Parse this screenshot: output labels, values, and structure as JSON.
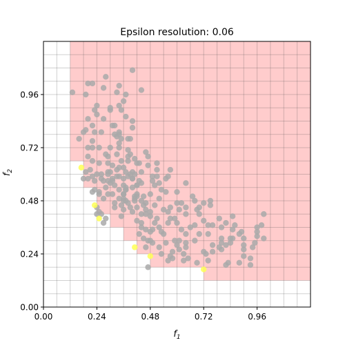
{
  "chart_data": {
    "type": "scatter",
    "title": "Epsilon resolution: 0.06",
    "xlabel": "f",
    "xlabel_sub": "1",
    "ylabel": "f",
    "ylabel_sub": "2",
    "xlim": [
      0.0,
      1.2
    ],
    "ylim": [
      0.0,
      1.2
    ],
    "xticks": [
      0.0,
      0.24,
      0.48,
      0.72,
      0.96
    ],
    "yticks": [
      0.0,
      0.24,
      0.48,
      0.72,
      0.96
    ],
    "xtick_labels": [
      "0.00",
      "0.24",
      "0.48",
      "0.72",
      "0.96"
    ],
    "ytick_labels": [
      "0.00",
      "0.24",
      "0.48",
      "0.72",
      "0.96"
    ],
    "epsilon": 0.06,
    "grid": true,
    "dominated_region": {
      "color": "#ff9999",
      "steps": [
        {
          "x": 0.12,
          "y": 0.66
        },
        {
          "x": 0.18,
          "y": 0.54
        },
        {
          "x": 0.24,
          "y": 0.42
        },
        {
          "x": 0.3,
          "y": 0.36
        },
        {
          "x": 0.36,
          "y": 0.3
        },
        {
          "x": 0.42,
          "y": 0.24
        },
        {
          "x": 0.48,
          "y": 0.18
        },
        {
          "x": 0.72,
          "y": 0.12
        }
      ]
    },
    "series": [
      {
        "color": "#a9a9a9",
        "points": [
          [
            0.61,
            0.44
          ],
          [
            0.34,
            0.59
          ],
          [
            0.44,
            0.42
          ],
          [
            0.93,
            0.22
          ],
          [
            0.36,
            0.44
          ],
          [
            0.48,
            0.41
          ],
          [
            0.56,
            0.38
          ],
          [
            0.24,
            0.42
          ],
          [
            0.55,
            0.58
          ],
          [
            0.3,
            0.61
          ],
          [
            0.82,
            0.19
          ],
          [
            0.38,
            0.68
          ],
          [
            0.72,
            0.39
          ],
          [
            0.9,
            0.26
          ],
          [
            0.63,
            0.24
          ],
          [
            0.73,
            0.24
          ],
          [
            0.75,
            0.46
          ],
          [
            0.47,
            0.18
          ],
          [
            0.22,
            0.52
          ],
          [
            0.32,
            0.78
          ],
          [
            0.57,
            0.45
          ],
          [
            0.76,
            0.25
          ],
          [
            0.64,
            0.33
          ],
          [
            0.36,
            0.51
          ],
          [
            0.3,
            0.72
          ],
          [
            0.88,
            0.33
          ],
          [
            0.27,
            0.57
          ],
          [
            0.99,
            0.31
          ],
          [
            0.4,
            0.58
          ],
          [
            0.32,
            0.45
          ],
          [
            0.44,
            0.56
          ],
          [
            0.51,
            0.59
          ],
          [
            0.34,
            0.63
          ],
          [
            0.45,
            0.31
          ],
          [
            0.18,
            0.58
          ],
          [
            0.59,
            0.3
          ],
          [
            0.27,
            0.99
          ],
          [
            0.44,
            0.98
          ],
          [
            0.52,
            0.36
          ],
          [
            0.55,
            0.52
          ],
          [
            0.67,
            0.5
          ],
          [
            0.48,
            0.34
          ],
          [
            0.57,
            0.4
          ],
          [
            0.62,
            0.35
          ],
          [
            0.31,
            0.82
          ],
          [
            0.37,
            0.53
          ],
          [
            0.74,
            0.37
          ],
          [
            0.33,
            0.97
          ],
          [
            0.72,
            0.47
          ],
          [
            0.83,
            0.2
          ],
          [
            0.85,
            0.31
          ],
          [
            0.85,
            0.41
          ],
          [
            0.3,
            0.89
          ],
          [
            0.42,
            0.39
          ],
          [
            0.58,
            0.22
          ],
          [
            0.64,
            0.56
          ],
          [
            0.22,
            1.01
          ],
          [
            0.79,
            0.27
          ],
          [
            0.53,
            0.24
          ],
          [
            0.37,
            0.54
          ],
          [
            0.82,
            0.38
          ],
          [
            0.41,
            0.48
          ],
          [
            0.82,
            0.28
          ],
          [
            0.4,
            0.81
          ],
          [
            0.34,
            0.53
          ],
          [
            0.35,
            0.89
          ],
          [
            0.19,
            0.96
          ],
          [
            0.29,
            0.6
          ],
          [
            0.34,
            0.72
          ],
          [
            0.13,
            0.97
          ],
          [
            0.62,
            0.47
          ],
          [
            0.36,
            0.55
          ],
          [
            0.68,
            0.3
          ],
          [
            0.68,
            0.37
          ],
          [
            0.32,
            0.47
          ],
          [
            0.6,
            0.47
          ],
          [
            0.61,
            0.26
          ],
          [
            0.75,
            0.48
          ],
          [
            0.24,
            0.91
          ],
          [
            0.96,
            0.36
          ],
          [
            0.7,
            0.45
          ],
          [
            0.44,
            0.36
          ],
          [
            0.16,
            0.76
          ],
          [
            0.56,
            0.21
          ],
          [
            0.19,
            0.8
          ],
          [
            0.19,
            0.61
          ],
          [
            0.22,
            0.72
          ],
          [
            0.36,
            0.49
          ],
          [
            0.88,
            0.2
          ],
          [
            0.8,
            0.29
          ],
          [
            0.45,
            0.5
          ],
          [
            0.69,
            0.44
          ],
          [
            0.23,
            0.53
          ],
          [
            0.61,
            0.3
          ],
          [
            0.42,
            0.55
          ],
          [
            0.5,
            0.46
          ],
          [
            0.38,
            0.47
          ],
          [
            0.63,
            0.21
          ],
          [
            0.36,
            0.51
          ],
          [
            0.49,
            0.29
          ],
          [
            0.32,
            0.55
          ],
          [
            0.27,
            0.38
          ],
          [
            0.34,
            1.0
          ],
          [
            0.9,
            0.23
          ],
          [
            0.96,
            0.32
          ],
          [
            0.24,
            0.87
          ],
          [
            0.37,
            0.96
          ],
          [
            0.41,
            0.49
          ],
          [
            0.64,
            0.29
          ],
          [
            0.22,
            0.59
          ],
          [
            0.34,
            0.78
          ],
          [
            0.94,
            0.27
          ],
          [
            0.36,
            0.93
          ],
          [
            0.33,
            0.59
          ],
          [
            0.53,
            0.53
          ],
          [
            0.39,
            0.45
          ],
          [
            0.28,
            0.4
          ],
          [
            0.29,
            0.61
          ],
          [
            0.4,
            0.58
          ],
          [
            0.99,
            0.42
          ],
          [
            0.2,
            0.85
          ],
          [
            0.26,
            0.42
          ],
          [
            0.35,
            0.76
          ],
          [
            0.37,
            0.48
          ],
          [
            0.35,
            0.46
          ],
          [
            0.25,
            0.72
          ],
          [
            0.28,
            1.04
          ],
          [
            0.2,
            0.72
          ],
          [
            0.36,
            0.63
          ],
          [
            0.44,
            0.38
          ],
          [
            0.31,
            0.51
          ],
          [
            0.46,
            0.44
          ],
          [
            0.3,
            0.9
          ],
          [
            0.42,
            0.51
          ],
          [
            0.2,
            1.01
          ],
          [
            0.5,
            0.55
          ],
          [
            0.42,
            0.65
          ],
          [
            0.4,
            0.61
          ],
          [
            0.57,
            0.62
          ],
          [
            0.48,
            0.3
          ],
          [
            0.25,
            0.51
          ],
          [
            0.24,
            0.6
          ],
          [
            0.46,
            0.7
          ],
          [
            0.21,
            0.62
          ],
          [
            0.2,
            0.58
          ],
          [
            0.26,
            0.79
          ],
          [
            0.41,
            0.67
          ],
          [
            0.64,
            0.45
          ],
          [
            0.23,
            0.79
          ],
          [
            0.31,
            0.64
          ],
          [
            0.26,
            0.58
          ],
          [
            0.22,
            0.82
          ],
          [
            0.38,
            0.59
          ],
          [
            0.47,
            0.3
          ],
          [
            0.4,
            0.43
          ],
          [
            0.51,
            0.62
          ],
          [
            0.34,
            0.79
          ],
          [
            0.52,
            0.49
          ],
          [
            0.96,
            0.34
          ],
          [
            0.84,
            0.29
          ],
          [
            0.29,
            0.57
          ],
          [
            0.34,
            0.74
          ],
          [
            0.36,
            0.48
          ],
          [
            0.48,
            0.43
          ],
          [
            0.93,
            0.19
          ],
          [
            0.68,
            0.48
          ],
          [
            0.59,
            0.4
          ],
          [
            0.39,
            0.76
          ],
          [
            0.28,
            0.69
          ],
          [
            0.33,
            0.77
          ],
          [
            0.45,
            0.46
          ],
          [
            0.31,
            0.57
          ],
          [
            0.8,
            0.31
          ],
          [
            0.43,
            0.65
          ],
          [
            0.41,
            0.5
          ],
          [
            0.65,
            0.22
          ],
          [
            0.54,
            0.33
          ],
          [
            0.4,
            1.07
          ],
          [
            0.18,
            0.79
          ],
          [
            0.47,
            0.68
          ],
          [
            0.42,
            0.5
          ],
          [
            0.25,
            0.43
          ],
          [
            0.76,
            0.28
          ],
          [
            0.37,
            0.86
          ],
          [
            0.39,
            0.6
          ],
          [
            0.9,
            0.31
          ],
          [
            0.56,
            0.59
          ],
          [
            0.49,
            0.35
          ],
          [
            0.3,
            0.56
          ],
          [
            0.44,
            0.61
          ],
          [
            0.28,
            0.54
          ],
          [
            0.43,
            0.33
          ],
          [
            0.46,
            0.42
          ],
          [
            0.42,
            0.55
          ],
          [
            0.84,
            0.31
          ],
          [
            0.37,
            0.53
          ],
          [
            0.33,
            0.62
          ],
          [
            0.25,
            0.52
          ],
          [
            0.4,
            0.84
          ],
          [
            0.89,
            0.34
          ],
          [
            0.22,
            0.66
          ],
          [
            0.29,
            0.68
          ],
          [
            0.64,
            0.27
          ],
          [
            0.52,
            0.27
          ],
          [
            0.66,
            0.36
          ],
          [
            0.51,
            0.65
          ],
          [
            0.23,
            0.89
          ],
          [
            0.49,
            0.59
          ],
          [
            0.31,
            0.58
          ],
          [
            0.38,
            0.71
          ],
          [
            0.57,
            0.23
          ],
          [
            0.76,
            0.37
          ],
          [
            0.42,
            0.45
          ],
          [
            0.41,
            0.6
          ],
          [
            0.23,
            0.57
          ],
          [
            0.54,
            0.44
          ],
          [
            0.8,
            0.26
          ],
          [
            0.46,
            0.47
          ],
          [
            0.79,
            0.4
          ],
          [
            0.34,
            0.91
          ],
          [
            0.69,
            0.2
          ],
          [
            0.29,
            0.65
          ],
          [
            0.35,
            0.66
          ],
          [
            0.46,
            0.27
          ],
          [
            0.27,
            0.49
          ],
          [
            0.86,
            0.37
          ],
          [
            0.47,
            0.64
          ],
          [
            0.52,
            0.56
          ],
          [
            0.9,
            0.28
          ],
          [
            0.34,
            0.49
          ],
          [
            0.72,
            0.25
          ],
          [
            0.74,
            0.21
          ],
          [
            0.8,
            0.36
          ],
          [
            0.53,
            0.34
          ],
          [
            0.44,
            0.48
          ],
          [
            0.24,
            0.45
          ],
          [
            0.2,
            0.68
          ],
          [
            0.98,
            0.37
          ],
          [
            0.39,
            0.69
          ],
          [
            0.27,
            0.85
          ],
          [
            0.29,
            0.51
          ],
          [
            0.6,
            0.38
          ],
          [
            0.48,
            0.51
          ],
          [
            0.22,
            0.75
          ],
          [
            0.85,
            0.35
          ],
          [
            0.55,
            0.29
          ],
          [
            0.74,
            0.33
          ],
          [
            0.64,
            0.42
          ],
          [
            0.7,
            0.33
          ],
          [
            0.32,
            0.82
          ],
          [
            0.38,
            0.76
          ],
          [
            0.58,
            0.25
          ],
          [
            0.4,
            0.54
          ],
          [
            0.25,
            0.65
          ],
          [
            0.49,
            0.57
          ],
          [
            0.36,
            0.58
          ],
          [
            0.5,
            0.38
          ],
          [
            0.43,
            0.57
          ],
          [
            0.33,
            0.69
          ],
          [
            0.35,
            0.41
          ],
          [
            0.6,
            0.52
          ],
          [
            0.6,
            0.28
          ],
          [
            0.56,
            0.43
          ],
          [
            0.95,
            0.29
          ],
          [
            0.51,
            0.4
          ],
          [
            0.37,
            0.61
          ],
          [
            0.26,
            0.6
          ],
          [
            0.7,
            0.42
          ],
          [
            0.38,
            0.66
          ],
          [
            0.46,
            0.35
          ]
        ]
      },
      {
        "color": "#ffff55",
        "points": [
          [
            0.17,
            0.63
          ],
          [
            0.23,
            0.46
          ],
          [
            0.25,
            0.4
          ],
          [
            0.41,
            0.27
          ],
          [
            0.48,
            0.23
          ],
          [
            0.72,
            0.17
          ]
        ]
      }
    ]
  }
}
